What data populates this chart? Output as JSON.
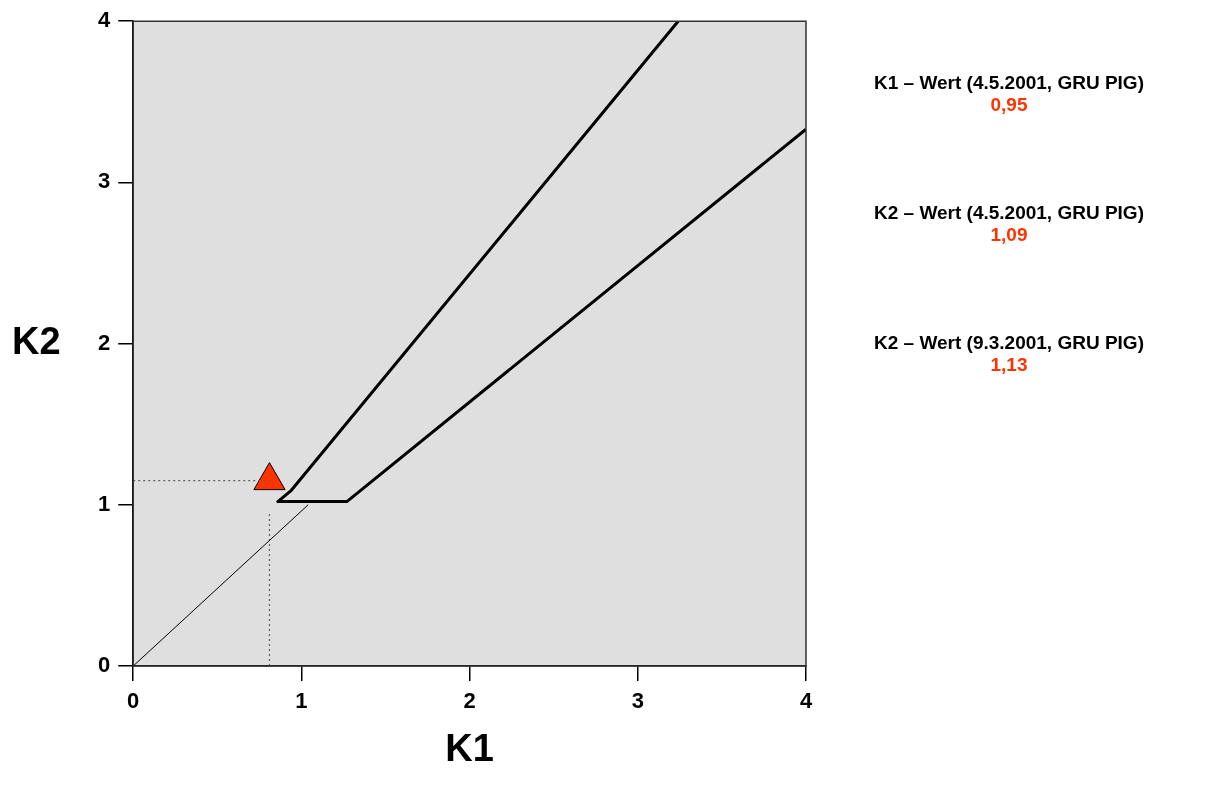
{
  "chart_data": {
    "type": "line",
    "xlabel": "K1",
    "ylabel": "K2",
    "xlim": [
      0,
      4
    ],
    "ylim": [
      0,
      4
    ],
    "xticks": [
      0,
      1,
      2,
      3,
      4
    ],
    "yticks": [
      0,
      1,
      2,
      3,
      4
    ],
    "grid": false,
    "series": [
      {
        "type": "line",
        "color": "#000000",
        "line_style": "solid",
        "x": [
          3.24,
          0.94,
          0.86,
          1.27,
          4
        ],
        "values": [
          4,
          1.09,
          1.02,
          1.02,
          3.33
        ]
      },
      {
        "type": "line",
        "color": "#000000",
        "line_style": "solid",
        "x": [
          0,
          1.04
        ],
        "values": [
          0,
          1.0
        ]
      },
      {
        "type": "line",
        "color": "#606060",
        "line_style": "dotted",
        "x": [
          0,
          0.81
        ],
        "values": [
          1.15,
          1.15
        ]
      },
      {
        "type": "line",
        "color": "#606060",
        "line_style": "dotted",
        "x": [
          0.81,
          0.81
        ],
        "values": [
          0,
          0.96
        ]
      },
      {
        "type": "scatter",
        "color": "#ff3300",
        "marker": "triangle",
        "x": [
          0.81
        ],
        "values": [
          1.15
        ]
      }
    ],
    "annotations": [
      "K1 – Wert (4.5.2001, GRU PIG)",
      "0,95",
      "K2 – Wert (4.5.2001, GRU PIG)",
      "1,09",
      "K2 – Wert (9.3.2001, GRU PIG)",
      "1,13"
    ]
  }
}
